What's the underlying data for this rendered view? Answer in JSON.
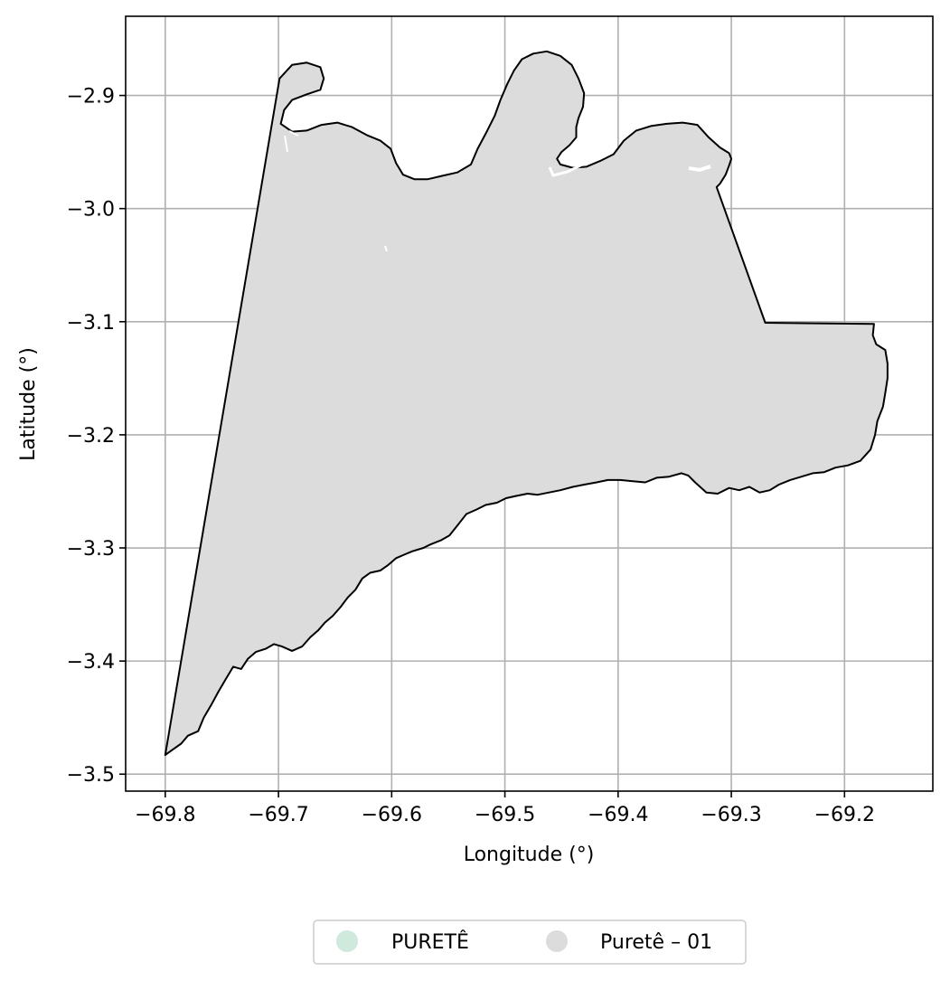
{
  "chart_data": {
    "type": "map",
    "xlabel": "Longitude (°)",
    "ylabel": "Latitude (°)",
    "xlim": [
      -69.835,
      -69.122
    ],
    "ylim": [
      -3.515,
      -2.83
    ],
    "x_ticks": [
      -69.8,
      -69.7,
      -69.6,
      -69.5,
      -69.4,
      -69.3,
      -69.2
    ],
    "x_tick_labels": [
      "−69.8",
      "−69.7",
      "−69.6",
      "−69.5",
      "−69.4",
      "−69.3",
      "−69.2"
    ],
    "y_ticks": [
      -2.9,
      -3.0,
      -3.1,
      -3.2,
      -3.3,
      -3.4,
      -3.5
    ],
    "y_tick_labels": [
      "−2.9",
      "−3.0",
      "−3.1",
      "−3.2",
      "−3.3",
      "−3.4",
      "−3.5"
    ],
    "grid": true,
    "legend_placement": "bottom-center, below plot",
    "legend": [
      {
        "label": "PURETÊ",
        "color": "#cfe9dc"
      },
      {
        "label": "Puretê – 01",
        "color": "#dcdcdc"
      }
    ],
    "region": {
      "name": "Puretê – 01",
      "fill": "#dcdcdc",
      "outline": "#000000",
      "boundary": [
        [
          -69.8,
          -3.483
        ],
        [
          -69.793,
          -3.478
        ],
        [
          -69.786,
          -3.473
        ],
        [
          -69.78,
          -3.466
        ],
        [
          -69.771,
          -3.462
        ],
        [
          -69.766,
          -3.45
        ],
        [
          -69.759,
          -3.438
        ],
        [
          -69.753,
          -3.427
        ],
        [
          -69.746,
          -3.415
        ],
        [
          -69.74,
          -3.405
        ],
        [
          -69.733,
          -3.407
        ],
        [
          -69.727,
          -3.398
        ],
        [
          -69.72,
          -3.392
        ],
        [
          -69.711,
          -3.389
        ],
        [
          -69.704,
          -3.385
        ],
        [
          -69.697,
          -3.387
        ],
        [
          -69.688,
          -3.391
        ],
        [
          -69.679,
          -3.387
        ],
        [
          -69.672,
          -3.379
        ],
        [
          -69.665,
          -3.373
        ],
        [
          -69.659,
          -3.366
        ],
        [
          -69.652,
          -3.36
        ],
        [
          -69.645,
          -3.352
        ],
        [
          -69.639,
          -3.344
        ],
        [
          -69.632,
          -3.337
        ],
        [
          -69.626,
          -3.327
        ],
        [
          -69.619,
          -3.322
        ],
        [
          -69.61,
          -3.32
        ],
        [
          -69.603,
          -3.315
        ],
        [
          -69.596,
          -3.309
        ],
        [
          -69.589,
          -3.306
        ],
        [
          -69.582,
          -3.303
        ],
        [
          -69.572,
          -3.3
        ],
        [
          -69.566,
          -3.297
        ],
        [
          -69.556,
          -3.293
        ],
        [
          -69.549,
          -3.289
        ],
        [
          -69.541,
          -3.279
        ],
        [
          -69.534,
          -3.27
        ],
        [
          -69.525,
          -3.266
        ],
        [
          -69.517,
          -3.262
        ],
        [
          -69.507,
          -3.26
        ],
        [
          -69.499,
          -3.256
        ],
        [
          -69.49,
          -3.254
        ],
        [
          -69.48,
          -3.252
        ],
        [
          -69.471,
          -3.253
        ],
        [
          -69.461,
          -3.251
        ],
        [
          -69.451,
          -3.249
        ],
        [
          -69.44,
          -3.246
        ],
        [
          -69.43,
          -3.244
        ],
        [
          -69.419,
          -3.242
        ],
        [
          -69.409,
          -3.24
        ],
        [
          -69.398,
          -3.24
        ],
        [
          -69.387,
          -3.241
        ],
        [
          -69.376,
          -3.242
        ],
        [
          -69.366,
          -3.238
        ],
        [
          -69.355,
          -3.237
        ],
        [
          -69.344,
          -3.234
        ],
        [
          -69.338,
          -3.236
        ],
        [
          -69.332,
          -3.242
        ],
        [
          -69.322,
          -3.251
        ],
        [
          -69.312,
          -3.252
        ],
        [
          -69.302,
          -3.247
        ],
        [
          -69.293,
          -3.249
        ],
        [
          -69.284,
          -3.246
        ],
        [
          -69.275,
          -3.251
        ],
        [
          -69.266,
          -3.249
        ],
        [
          -69.258,
          -3.244
        ],
        [
          -69.248,
          -3.24
        ],
        [
          -69.238,
          -3.237
        ],
        [
          -69.228,
          -3.234
        ],
        [
          -69.218,
          -3.233
        ],
        [
          -69.208,
          -3.229
        ],
        [
          -69.197,
          -3.227
        ],
        [
          -69.186,
          -3.223
        ],
        [
          -69.177,
          -3.213
        ],
        [
          -69.173,
          -3.2
        ],
        [
          -69.171,
          -3.188
        ],
        [
          -69.166,
          -3.175
        ],
        [
          -69.164,
          -3.163
        ],
        [
          -69.162,
          -3.15
        ],
        [
          -69.162,
          -3.137
        ],
        [
          -69.164,
          -3.125
        ],
        [
          -69.172,
          -3.12
        ],
        [
          -69.175,
          -3.112
        ],
        [
          -69.174,
          -3.102
        ],
        [
          -69.27,
          -3.101
        ],
        [
          -69.313,
          -2.981
        ],
        [
          -69.31,
          -2.978
        ],
        [
          -69.305,
          -2.97
        ],
        [
          -69.302,
          -2.962
        ],
        [
          -69.3,
          -2.956
        ],
        [
          -69.302,
          -2.951
        ],
        [
          -69.31,
          -2.946
        ],
        [
          -69.32,
          -2.937
        ],
        [
          -69.33,
          -2.926
        ],
        [
          -69.343,
          -2.924
        ],
        [
          -69.357,
          -2.925
        ],
        [
          -69.371,
          -2.927
        ],
        [
          -69.384,
          -2.931
        ],
        [
          -69.395,
          -2.94
        ],
        [
          -69.404,
          -2.952
        ],
        [
          -69.416,
          -2.958
        ],
        [
          -69.428,
          -2.963
        ],
        [
          -69.44,
          -2.964
        ],
        [
          -69.451,
          -2.961
        ],
        [
          -69.454,
          -2.956
        ],
        [
          -69.45,
          -2.95
        ],
        [
          -69.443,
          -2.944
        ],
        [
          -69.437,
          -2.937
        ],
        [
          -69.437,
          -2.928
        ],
        [
          -69.435,
          -2.92
        ],
        [
          -69.431,
          -2.91
        ],
        [
          -69.43,
          -2.898
        ],
        [
          -69.435,
          -2.885
        ],
        [
          -69.441,
          -2.873
        ],
        [
          -69.451,
          -2.865
        ],
        [
          -69.463,
          -2.861
        ],
        [
          -69.475,
          -2.863
        ],
        [
          -69.485,
          -2.868
        ],
        [
          -69.492,
          -2.878
        ],
        [
          -69.498,
          -2.89
        ],
        [
          -69.504,
          -2.904
        ],
        [
          -69.509,
          -2.918
        ],
        [
          -69.516,
          -2.932
        ],
        [
          -69.524,
          -2.947
        ],
        [
          -69.53,
          -2.961
        ],
        [
          -69.542,
          -2.968
        ],
        [
          -69.555,
          -2.971
        ],
        [
          -69.568,
          -2.974
        ],
        [
          -69.58,
          -2.974
        ],
        [
          -69.59,
          -2.97
        ],
        [
          -69.596,
          -2.96
        ],
        [
          -69.601,
          -2.947
        ],
        [
          -69.61,
          -2.94
        ],
        [
          -69.622,
          -2.935
        ],
        [
          -69.635,
          -2.928
        ],
        [
          -69.648,
          -2.924
        ],
        [
          -69.662,
          -2.926
        ],
        [
          -69.675,
          -2.931
        ],
        [
          -69.688,
          -2.932
        ],
        [
          -69.698,
          -2.925
        ],
        [
          -69.695,
          -2.913
        ],
        [
          -69.688,
          -2.904
        ],
        [
          -69.675,
          -2.899
        ],
        [
          -69.663,
          -2.895
        ],
        [
          -69.66,
          -2.885
        ],
        [
          -69.663,
          -2.875
        ],
        [
          -69.675,
          -2.871
        ],
        [
          -69.688,
          -2.873
        ],
        [
          -69.699,
          -2.885
        ],
        [
          -69.8,
          -3.483
        ]
      ]
    }
  }
}
